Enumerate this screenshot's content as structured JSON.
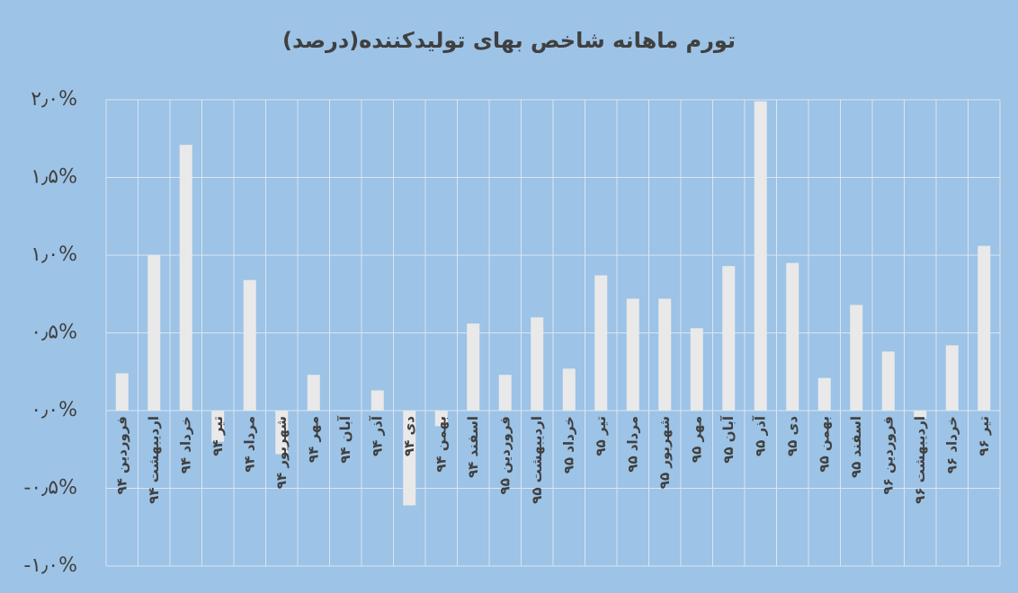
{
  "chart_data": {
    "type": "bar",
    "title": "تورم ماهانه شاخص بهای تولیدکننده(درصد)",
    "categories": [
      "فروردین ۹۴",
      "اردیبهشت ۹۴",
      "خرداد ۹۴",
      "تیر ۹۴",
      "مرداد ۹۴",
      "شهریور ۹۴",
      "مهر ۹۴",
      "آبان ۹۴",
      "آذر ۹۴",
      "دی ۹۴",
      "بهمن ۹۴",
      "اسفند ۹۴",
      "فروردین ۹۵",
      "اردیبهشت ۹۵",
      "خرداد ۹۵",
      "تیر ۹۵",
      "مرداد ۹۵",
      "شهریور ۹۵",
      "مهر ۹۵",
      "آبان ۹۵",
      "آذر ۹۵",
      "دی ۹۵",
      "بهمن ۹۵",
      "اسفند ۹۵",
      "فروردین ۹۶",
      "اردیبهشت ۹۶",
      "خرداد ۹۶",
      "تیر ۹۶"
    ],
    "values": [
      0.24,
      1.0,
      1.71,
      -0.2,
      0.84,
      -0.28,
      0.23,
      0.0,
      0.13,
      -0.61,
      -0.1,
      0.56,
      0.23,
      0.6,
      0.27,
      0.87,
      0.72,
      0.72,
      0.53,
      0.93,
      1.99,
      0.95,
      0.21,
      0.68,
      0.38,
      -0.05,
      0.42,
      1.06
    ],
    "color": "#e9e9e9",
    "ylim": [
      -1.0,
      2.0
    ],
    "yticks": [
      {
        "value": -1.0,
        "label": "-۱٫۰%"
      },
      {
        "value": -0.5,
        "label": "-۰٫۵%"
      },
      {
        "value": 0,
        "label": "۰٫۰%"
      },
      {
        "value": 0.5,
        "label": "۰٫۵%"
      },
      {
        "value": 1.0,
        "label": "۱٫۰%"
      },
      {
        "value": 1.5,
        "label": "۱٫۵%"
      },
      {
        "value": 2.0,
        "label": "۲٫۰%"
      }
    ],
    "grid": true
  }
}
